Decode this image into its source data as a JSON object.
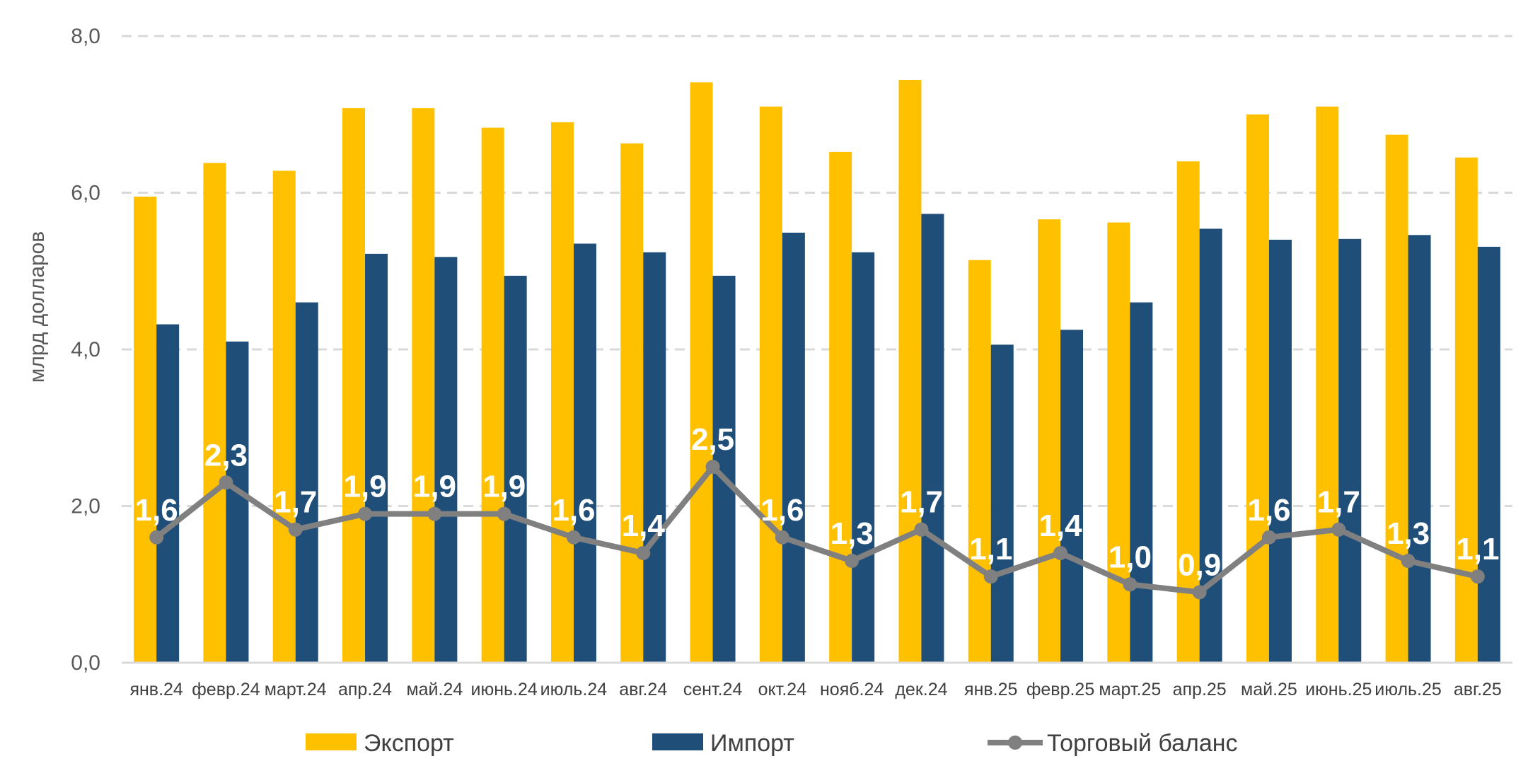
{
  "chart_data": {
    "type": "bar",
    "ylabel": "млрд долларов",
    "xlabel": "",
    "title": "",
    "ylim": [
      0,
      8
    ],
    "yticks": [
      "0,0",
      "2,0",
      "4,0",
      "6,0",
      "8,0"
    ],
    "grid": true,
    "legend_position": "bottom",
    "categories": [
      "янв.24",
      "февр.24",
      "март.24",
      "апр.24",
      "май.24",
      "июнь.24",
      "июль.24",
      "авг.24",
      "сент.24",
      "окт.24",
      "нояб.24",
      "дек.24",
      "янв.25",
      "февр.25",
      "март.25",
      "апр.25",
      "май.25",
      "июнь.25",
      "июль.25",
      "авг.25"
    ],
    "series": [
      {
        "name": "Экспорт",
        "type": "bar",
        "color": "#FFC000",
        "values": [
          5.95,
          6.38,
          6.28,
          7.08,
          7.08,
          6.83,
          6.9,
          6.63,
          7.41,
          7.1,
          6.52,
          7.44,
          5.14,
          5.66,
          5.62,
          6.4,
          7.0,
          7.1,
          6.74,
          6.45
        ]
      },
      {
        "name": "Импорт",
        "type": "bar",
        "color": "#1F4E79",
        "values": [
          4.32,
          4.1,
          4.6,
          5.22,
          5.18,
          4.94,
          5.35,
          5.24,
          4.94,
          5.49,
          5.24,
          5.73,
          4.06,
          4.25,
          4.6,
          5.54,
          5.4,
          5.41,
          5.46,
          5.31
        ]
      },
      {
        "name": "Торговый баланс",
        "type": "line",
        "color": "#808080",
        "values": [
          1.6,
          2.3,
          1.7,
          1.9,
          1.9,
          1.9,
          1.6,
          1.4,
          2.5,
          1.6,
          1.3,
          1.7,
          1.1,
          1.4,
          1.0,
          0.9,
          1.6,
          1.7,
          1.3,
          1.1
        ],
        "labels": [
          "1,6",
          "2,3",
          "1,7",
          "1,9",
          "1,9",
          "1,9",
          "1,6",
          "1,4",
          "2,5",
          "1,6",
          "1,3",
          "1,7",
          "1,1",
          "1,4",
          "1,0",
          "0,9",
          "1,6",
          "1,7",
          "1,3",
          "1,1"
        ]
      }
    ]
  }
}
